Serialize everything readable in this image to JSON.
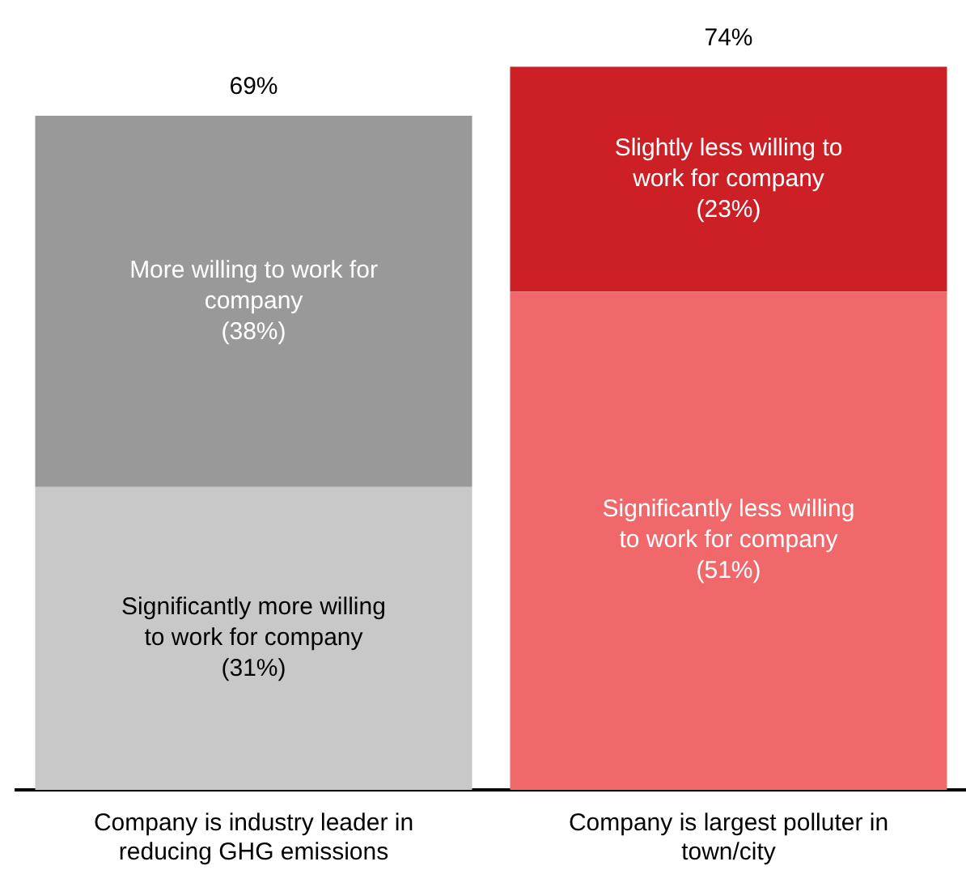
{
  "chart_data": {
    "type": "bar",
    "stacked": true,
    "categories": [
      "Company is industry leader in reducing GHG emissions",
      "Company is largest polluter in town/city"
    ],
    "series": [
      {
        "colors": [
          "#c8c8c8",
          "#f06869"
        ],
        "values": [
          31,
          51
        ],
        "value_labels": [
          "Significantly more willing to work for company (31%)",
          "Significantly less willing to work for company (51%)"
        ]
      },
      {
        "colors": [
          "#999999",
          "#cc1f26"
        ],
        "values": [
          38,
          23
        ],
        "value_labels": [
          "More willing to work for company (38%)",
          "Slightly less willing to work for company (23%)"
        ]
      }
    ],
    "totals": [
      "69%",
      "74%"
    ],
    "grid": false,
    "legend": false
  }
}
